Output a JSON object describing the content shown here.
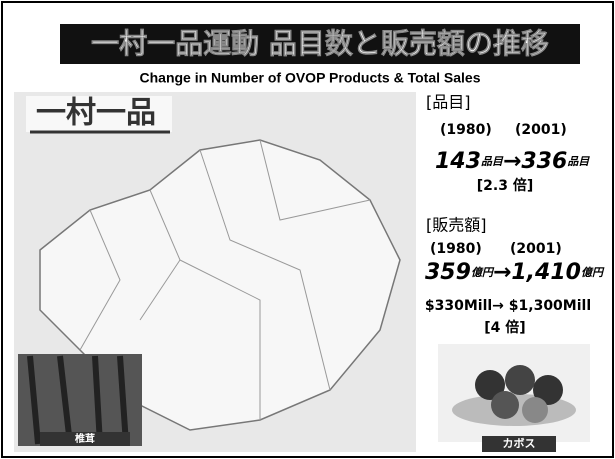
{
  "header": {
    "title": "一村一品運動 品目数と販売額の推移",
    "subtitle": "Change in Number of OVOP Products & Total Sales"
  },
  "map": {
    "label": "一村一品",
    "photo_caption": "椎茸"
  },
  "products": {
    "heading": "[品目]",
    "year_from": "(1980)",
    "year_to": "(2001)",
    "from_value": "143",
    "from_unit": "品目",
    "arrow": "→",
    "to_value": "336",
    "to_unit": "品目",
    "ratio": "[2.3 倍]"
  },
  "sales": {
    "heading": "[販売額]",
    "year_from": "(1980)",
    "year_to": "(2001)",
    "from_value": "359",
    "from_unit": "億円",
    "arrow": "→",
    "to_value": "1,410",
    "to_unit": "億円",
    "usd": "$330Mill→ $1,300Mill",
    "ratio": "[4 倍]"
  },
  "photo": {
    "caption": "カボス"
  }
}
